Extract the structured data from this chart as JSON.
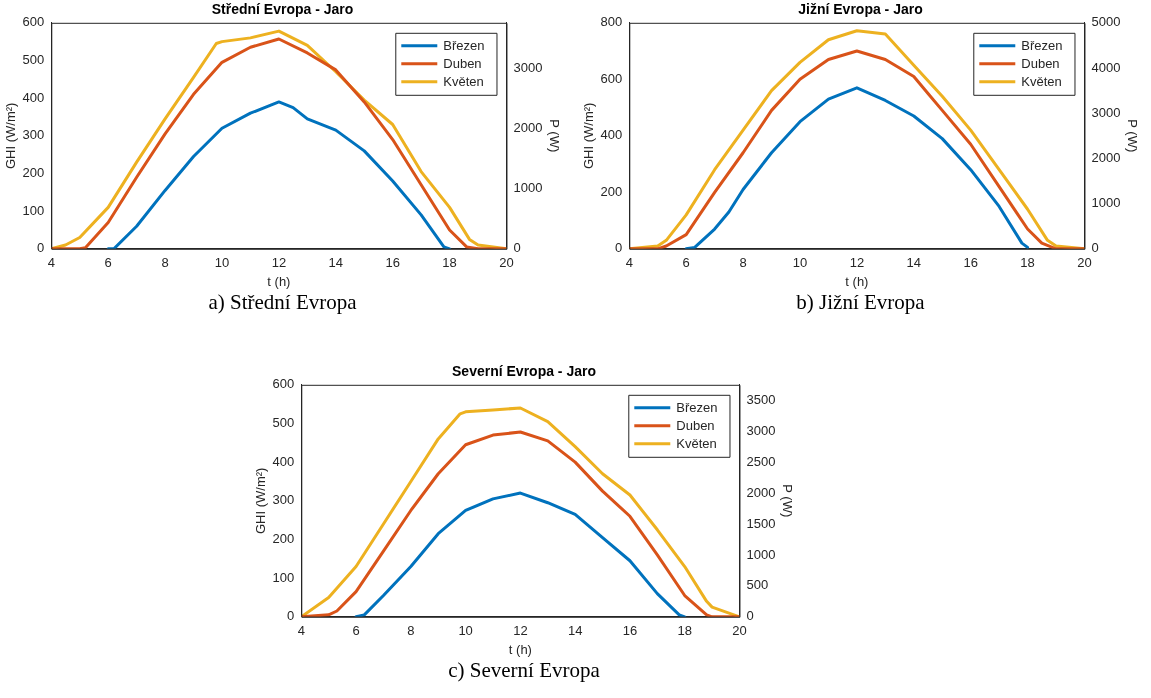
{
  "chart_data": [
    {
      "type": "line",
      "title": "Střední Evropa - Jaro",
      "xlabel": "t (h)",
      "ylabel": "GHI (W/m²)",
      "y2label": "P (W)",
      "annotations": [
        "a) Střední Evropa"
      ],
      "xlim": [
        4,
        20
      ],
      "xticks": [
        4,
        6,
        8,
        10,
        12,
        14,
        16,
        18,
        20
      ],
      "ylim": [
        0,
        600
      ],
      "yticks": [
        0,
        100,
        200,
        300,
        400,
        500,
        600
      ],
      "y2lim": [
        0,
        3750
      ],
      "y2ticks": [
        0,
        1000,
        2000,
        3000
      ],
      "grid": false,
      "legend": "top right",
      "marker": "none",
      "line_style": "solid",
      "series": [
        {
          "name": "Březen",
          "color": "#0072bd",
          "x": [
            6,
            6.2,
            7,
            8,
            9,
            10,
            11,
            12,
            12.5,
            13,
            14,
            15,
            16,
            17,
            17.8,
            18
          ],
          "values": [
            0,
            0,
            60,
            155,
            245,
            320,
            360,
            390,
            375,
            345,
            315,
            260,
            180,
            90,
            5,
            0
          ]
        },
        {
          "name": "Duben",
          "color": "#d95319",
          "x": [
            4,
            5,
            5.2,
            6,
            7,
            8,
            9,
            10,
            11,
            12,
            13,
            14,
            15,
            16,
            17,
            18,
            18.6,
            19,
            20
          ],
          "values": [
            0,
            0,
            3,
            70,
            190,
            305,
            410,
            495,
            535,
            557,
            520,
            475,
            390,
            290,
            170,
            50,
            5,
            0,
            0
          ]
        },
        {
          "name": "Květen",
          "color": "#edb120",
          "x": [
            4,
            4.5,
            5,
            6,
            7,
            8,
            9,
            9.8,
            10,
            11,
            12,
            13,
            14,
            15,
            16,
            17,
            18,
            18.7,
            19,
            20
          ],
          "values": [
            0,
            10,
            30,
            110,
            230,
            345,
            455,
            545,
            550,
            560,
            578,
            540,
            470,
            395,
            330,
            205,
            110,
            25,
            10,
            0
          ]
        }
      ]
    },
    {
      "type": "line",
      "title": "Jižní Evropa - Jaro",
      "xlabel": "t (h)",
      "ylabel": "GHI (W/m²)",
      "y2label": "P (W)",
      "annotations": [
        "b) Jižní Evropa"
      ],
      "xlim": [
        4,
        20
      ],
      "xticks": [
        4,
        6,
        8,
        10,
        12,
        14,
        16,
        18,
        20
      ],
      "ylim": [
        0,
        800
      ],
      "yticks": [
        0,
        200,
        400,
        600,
        800
      ],
      "y2lim": [
        0,
        5000
      ],
      "y2ticks": [
        0,
        1000,
        2000,
        3000,
        4000,
        5000
      ],
      "grid": false,
      "legend": "top right",
      "marker": "none",
      "line_style": "solid",
      "series": [
        {
          "name": "Březen",
          "color": "#0072bd",
          "x": [
            6,
            6.3,
            7,
            7.5,
            8,
            9,
            10,
            11,
            12,
            13,
            14,
            15,
            16,
            17,
            17.8,
            18
          ],
          "values": [
            0,
            5,
            70,
            130,
            210,
            340,
            450,
            530,
            570,
            525,
            470,
            390,
            280,
            150,
            20,
            5
          ]
        },
        {
          "name": "Duben",
          "color": "#d95319",
          "x": [
            4,
            5,
            5.3,
            6,
            7,
            8,
            9,
            10,
            11,
            12,
            13,
            14,
            14.5,
            15,
            16,
            17,
            18,
            18.5,
            19,
            20
          ],
          "values": [
            0,
            0,
            10,
            50,
            200,
            340,
            490,
            600,
            670,
            700,
            670,
            610,
            550,
            490,
            370,
            220,
            70,
            20,
            0,
            0
          ]
        },
        {
          "name": "Květen",
          "color": "#edb120",
          "x": [
            4,
            5,
            5.3,
            6,
            7,
            8,
            9,
            10,
            11,
            12,
            13,
            14,
            15,
            16,
            17,
            18,
            18.7,
            19,
            20
          ],
          "values": [
            0,
            10,
            30,
            120,
            280,
            420,
            560,
            660,
            740,
            772,
            760,
            650,
            540,
            420,
            280,
            140,
            30,
            10,
            0
          ]
        }
      ]
    },
    {
      "type": "line",
      "title": "Severní Evropa - Jaro",
      "xlabel": "t (h)",
      "ylabel": "GHI (W/m²)",
      "y2label": "P (W)",
      "annotations": [
        "c) Severní Evropa"
      ],
      "xlim": [
        4,
        20
      ],
      "xticks": [
        4,
        6,
        8,
        10,
        12,
        14,
        16,
        18,
        20
      ],
      "ylim": [
        0,
        600
      ],
      "yticks": [
        0,
        100,
        200,
        300,
        400,
        500,
        600
      ],
      "y2lim": [
        0,
        3750
      ],
      "y2ticks": [
        0,
        500,
        1000,
        1500,
        2000,
        2500,
        3000,
        3500
      ],
      "grid": false,
      "legend": "top right",
      "marker": "none",
      "line_style": "solid",
      "series": [
        {
          "name": "Březen",
          "color": "#0072bd",
          "x": [
            6,
            6.3,
            7,
            8,
            9,
            10,
            11,
            12,
            13,
            14,
            15,
            16,
            17,
            17.8,
            18
          ],
          "values": [
            0,
            5,
            55,
            130,
            215,
            275,
            305,
            320,
            295,
            265,
            205,
            145,
            60,
            5,
            0
          ]
        },
        {
          "name": "Duben",
          "color": "#d95319",
          "x": [
            4,
            5,
            5.3,
            6,
            7,
            8,
            9,
            10,
            11,
            12,
            13,
            14,
            15,
            16,
            17,
            18,
            18.8,
            19,
            20
          ],
          "values": [
            0,
            5,
            15,
            65,
            170,
            275,
            370,
            445,
            470,
            478,
            455,
            400,
            325,
            260,
            160,
            55,
            5,
            0,
            0
          ]
        },
        {
          "name": "Květen",
          "color": "#edb120",
          "x": [
            4,
            5,
            6,
            7,
            8,
            9,
            9.8,
            10,
            11,
            12,
            13,
            14,
            15,
            16,
            17,
            18,
            18.8,
            19,
            20
          ],
          "values": [
            0,
            50,
            130,
            240,
            350,
            460,
            525,
            530,
            535,
            540,
            505,
            440,
            370,
            315,
            225,
            130,
            40,
            25,
            0
          ]
        }
      ]
    }
  ]
}
